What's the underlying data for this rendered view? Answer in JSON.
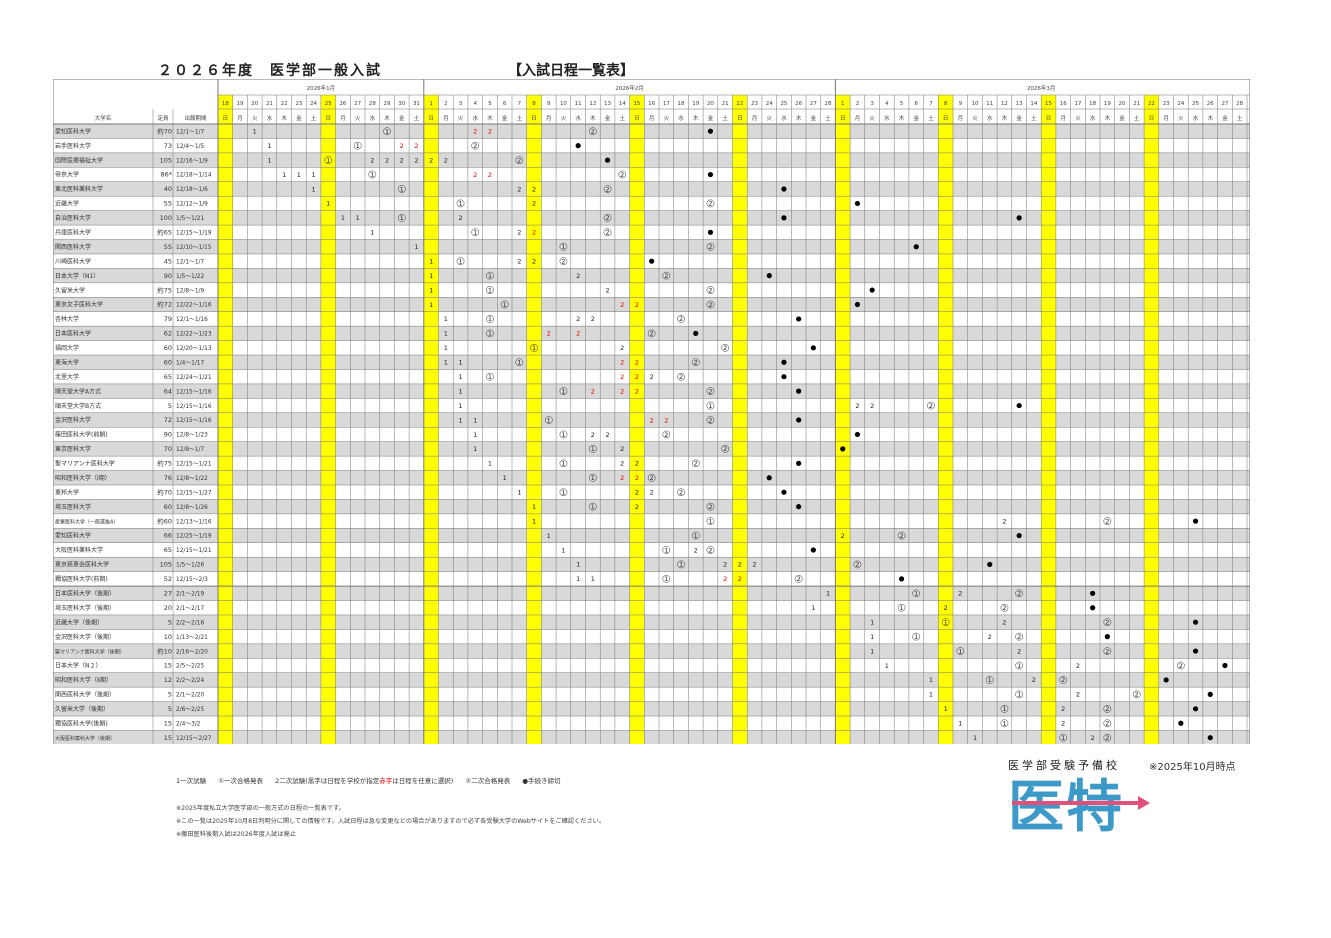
{
  "header": {
    "title": "２０２６年度　医学部一般入試",
    "subtitle": "【入試日程一覧表】"
  },
  "table": {
    "col_univ": "大学名",
    "col_quota": "定員",
    "col_period": "出願期間",
    "month_labels": [
      "2026年1月",
      "2026年2月",
      "2026年3月"
    ],
    "jan_days": [
      18,
      19,
      20,
      21,
      22,
      23,
      24,
      25,
      26,
      27,
      28,
      29,
      30,
      31
    ],
    "feb_days": [
      1,
      2,
      3,
      4,
      5,
      6,
      7,
      8,
      9,
      10,
      11,
      12,
      13,
      14,
      15,
      16,
      17,
      18,
      19,
      20,
      21,
      22,
      23,
      24,
      25,
      26,
      27,
      28
    ],
    "mar_days": [
      1,
      2,
      3,
      4,
      5,
      6,
      7,
      8,
      9,
      10,
      11,
      12,
      13,
      14,
      15,
      16,
      17,
      18,
      19,
      20,
      21,
      22,
      23,
      24,
      25,
      26,
      27,
      28
    ],
    "weekday_cycle": [
      "日",
      "月",
      "火",
      "水",
      "木",
      "金",
      "土"
    ],
    "highlight_days": [
      "1-18",
      "1-25",
      "2-1",
      "2-8",
      "2-15",
      "2-22",
      "3-1",
      "3-8",
      "3-15",
      "3-22"
    ],
    "highlight_color": "#ffff00",
    "shade_color": "#d9d9d9",
    "red_color": "#e00000",
    "universities": [
      {
        "name": "愛知医科大学",
        "quota": "約70",
        "period": "12/1～1/7",
        "marks": [
          "1-20:1",
          "1-29:c1",
          "2-4:r2",
          "2-5:r2",
          "2-12:c2",
          "2-20:dot"
        ]
      },
      {
        "name": "岩手医科大学",
        "quota": "73",
        "period": "12/4～1/5",
        "marks": [
          "1-21:1",
          "1-27:c1",
          "1-30:r2",
          "1-31:r2",
          "2-4:c2",
          "2-11:dot"
        ]
      },
      {
        "name": "国際医療福祉大学",
        "quota": "105",
        "period": "12/16～1/9",
        "marks": [
          "1-21:1",
          "1-25:c1",
          "1-28:2",
          "1-29:2",
          "1-30:2",
          "1-31:2",
          "2-1:2",
          "2-2:2",
          "2-7:c2",
          "2-13:dot"
        ]
      },
      {
        "name": "帝京大学",
        "quota": "86*",
        "period": "12/18～1/14",
        "marks": [
          "1-22:1",
          "1-23:1",
          "1-24:1",
          "1-28:c1",
          "2-4:r2",
          "2-5:r2",
          "2-14:c2",
          "2-20:dot"
        ]
      },
      {
        "name": "東北医科薬科大学",
        "quota": "40",
        "period": "12/18～1/6",
        "marks": [
          "1-24:1",
          "1-30:c1",
          "2-7:2",
          "2-8:2",
          "2-13:c2",
          "2-25:dot"
        ]
      },
      {
        "name": "近畿大学",
        "quota": "55",
        "period": "12/12～1/9",
        "marks": [
          "1-25:1",
          "2-3:c1",
          "2-8:2",
          "2-20:c2",
          "3-2:dot"
        ]
      },
      {
        "name": "自治医科大学",
        "quota": "100",
        "period": "1/5～1/21",
        "marks": [
          "1-26:1",
          "1-27:1",
          "1-30:c1",
          "2-3:2",
          "2-13:c2",
          "2-25:dot",
          "3-13:dot"
        ]
      },
      {
        "name": "兵庫医科大学",
        "quota": "約65",
        "period": "12/15～1/19",
        "marks": [
          "1-28:1",
          "2-4:c1",
          "2-7:2",
          "2-8:r2",
          "2-13:c2",
          "2-20:dot"
        ]
      },
      {
        "name": "関西医科大学",
        "quota": "55",
        "period": "12/10～1/15",
        "marks": [
          "1-31:1",
          "2-10:c1",
          "2-20:c2",
          "3-6:dot"
        ]
      },
      {
        "name": "川崎医科大学",
        "quota": "45",
        "period": "12/1～1/7",
        "marks": [
          "2-1:1",
          "2-3:c1",
          "2-7:2",
          "2-8:2",
          "2-10:c2",
          "2-16:dot"
        ]
      },
      {
        "name": "日本大学（N1）",
        "quota": "90",
        "period": "1/5～1/22",
        "marks": [
          "2-1:1",
          "2-5:c1",
          "2-11:2",
          "2-17:c2",
          "2-24:dot"
        ]
      },
      {
        "name": "久留米大学",
        "quota": "約75",
        "period": "12/8～1/9",
        "marks": [
          "2-1:1",
          "2-5:c1",
          "2-13:2",
          "2-20:c2",
          "3-3:dot"
        ]
      },
      {
        "name": "東京女子医科大学",
        "quota": "約72",
        "period": "12/22～1/16",
        "marks": [
          "2-1:1",
          "2-6:c1",
          "2-14:r2",
          "2-15:r2",
          "2-20:c2",
          "3-2:dot"
        ]
      },
      {
        "name": "杏林大学",
        "quota": "79",
        "period": "12/1～1/16",
        "marks": [
          "2-2:1",
          "2-5:c1",
          "2-11:2",
          "2-12:2",
          "2-18:c2",
          "2-26:dot"
        ]
      },
      {
        "name": "日本医科大学",
        "quota": "62",
        "period": "12/22～1/23",
        "marks": [
          "2-2:1",
          "2-5:c1",
          "2-9:r2",
          "2-11:r2",
          "2-16:c2",
          "2-19:dot"
        ]
      },
      {
        "name": "福岡大学",
        "quota": "60",
        "period": "12/20～1/13",
        "marks": [
          "2-2:1",
          "2-8:c1",
          "2-14:2",
          "2-21:c2",
          "2-27:dot"
        ]
      },
      {
        "name": "東海大学",
        "quota": "60",
        "period": "1/4～1/17",
        "marks": [
          "2-2:1",
          "2-3:1",
          "2-7:c1",
          "2-14:r2",
          "2-15:r2",
          "2-19:c2",
          "2-25:dot"
        ]
      },
      {
        "name": "北里大学",
        "quota": "65",
        "period": "12/24～1/21",
        "marks": [
          "2-3:1",
          "2-5:c1",
          "2-14:r2",
          "2-15:r2",
          "2-16:2",
          "2-18:c2",
          "2-25:dot"
        ]
      },
      {
        "name": "順天堂大学A方式",
        "quota": "64",
        "period": "12/15～1/16",
        "marks": [
          "2-3:1",
          "2-10:c1",
          "2-12:r2",
          "2-14:r2",
          "2-15:r2",
          "2-20:c2",
          "2-26:dot"
        ]
      },
      {
        "name": "順天堂大学B方式",
        "quota": "5",
        "period": "12/15～1/16",
        "marks": [
          "2-3:1",
          "2-20:c1",
          "3-2:2",
          "3-3:2",
          "3-7:c2",
          "3-13:dot"
        ]
      },
      {
        "name": "金沢医科大学",
        "quota": "72",
        "period": "12/15～1/16",
        "marks": [
          "2-3:1",
          "2-4:1",
          "2-9:c1",
          "2-16:r2",
          "2-17:r2",
          "2-20:c2",
          "2-26:dot"
        ]
      },
      {
        "name": "藤田医科大学(前期)",
        "quota": "90",
        "period": "12/8～1/23",
        "marks": [
          "2-4:1",
          "2-10:c1",
          "2-12:2",
          "2-13:2",
          "2-17:c2",
          "3-2:dot"
        ]
      },
      {
        "name": "東京医科大学",
        "quota": "70",
        "period": "12/8～1/7",
        "marks": [
          "2-4:1",
          "2-12:c1",
          "2-14:2",
          "2-21:c2",
          "3-1:dot"
        ]
      },
      {
        "name": "聖マリアンナ医科大学",
        "quota": "約75",
        "period": "12/15～1/21",
        "marks": [
          "2-5:1",
          "2-10:c1",
          "2-14:2",
          "2-15:2",
          "2-19:c2",
          "2-26:dot"
        ]
      },
      {
        "name": "昭和医科大学（Ⅰ期）",
        "quota": "76",
        "period": "12/8～1/22",
        "marks": [
          "2-6:1",
          "2-12:c1",
          "2-14:r2",
          "2-15:r2",
          "2-16:c2",
          "2-24:dot"
        ]
      },
      {
        "name": "東邦大学",
        "quota": "約70",
        "period": "12/15～1/27",
        "marks": [
          "2-7:1",
          "2-10:c1",
          "2-15:2",
          "2-16:2",
          "2-18:c2",
          "2-25:dot"
        ]
      },
      {
        "name": "埼玉医科大学",
        "quota": "60",
        "period": "12/8～1/26",
        "marks": [
          "2-8:1",
          "2-12:c1",
          "2-15:2",
          "2-20:c2",
          "2-26:dot"
        ]
      },
      {
        "name": "産業医科大学（一般選抜A）",
        "quota": "約60",
        "period": "12/13～1/16",
        "marks": [
          "2-8:1",
          "2-20:c1",
          "3-12:2",
          "3-19:c2",
          "3-25:dot"
        ]
      },
      {
        "name": "愛知医科大学",
        "quota": "66",
        "period": "12/25～1/19",
        "marks": [
          "2-9:1",
          "2-19:c1",
          "3-1:2",
          "3-5:c2",
          "3-13:dot"
        ]
      },
      {
        "name": "大阪医科薬科大学",
        "quota": "65",
        "period": "12/15～1/21",
        "marks": [
          "2-10:1",
          "2-17:c1",
          "2-19:2",
          "2-20:c2",
          "2-27:dot"
        ]
      },
      {
        "name": "東京慈恵会医科大学",
        "quota": "105",
        "period": "1/5～1/26",
        "marks": [
          "2-11:1",
          "2-18:c1",
          "2-21:2",
          "2-22:2",
          "2-23:2",
          "3-2:c2",
          "3-11:dot"
        ]
      },
      {
        "name": "獨協医科大学(前期)",
        "quota": "52",
        "period": "12/15～2/3",
        "marks": [
          "2-11:1",
          "2-12:1",
          "2-17:c1",
          "2-21:r2",
          "2-22:r2",
          "2-26:c2",
          "3-5:dot"
        ]
      },
      {
        "name": "日本医科大学（後期）",
        "quota": "27",
        "period": "2/1～2/19",
        "marks": [
          "2-28:1",
          "3-6:c1",
          "3-9:2",
          "3-13:c2",
          "3-18:dot"
        ]
      },
      {
        "name": "埼玉医科大学（後期）",
        "quota": "20",
        "period": "2/1～2/17",
        "marks": [
          "2-27:1",
          "3-5:c1",
          "3-8:2",
          "3-12:c2",
          "3-18:dot"
        ]
      },
      {
        "name": "近畿大学（後期）",
        "quota": "5",
        "period": "2/2～2/16",
        "marks": [
          "3-3:1",
          "3-8:c1",
          "3-12:2",
          "3-19:c2",
          "3-25:dot"
        ]
      },
      {
        "name": "金沢医科大学（後期）",
        "quota": "10",
        "period": "1/13～2/21",
        "marks": [
          "3-3:1",
          "3-6:c1",
          "3-11:2",
          "3-13:c2",
          "3-19:dot"
        ]
      },
      {
        "name": "聖マリアンナ医科大学（後期）",
        "quota": "約10",
        "period": "2/16～2/20",
        "marks": [
          "3-3:1",
          "3-9:c1",
          "3-13:2",
          "3-19:c2",
          "3-25:dot"
        ]
      },
      {
        "name": "日本大学（N２）",
        "quota": "15",
        "period": "2/5～2/25",
        "marks": [
          "3-4:1",
          "3-13:c1",
          "3-17:2",
          "3-24:c2",
          "3-27:dot"
        ]
      },
      {
        "name": "昭和医科大学（Ⅱ期）",
        "quota": "12",
        "period": "2/2～2/24",
        "marks": [
          "3-7:1",
          "3-11:c1",
          "3-14:2",
          "3-16:c2",
          "3-23:dot"
        ]
      },
      {
        "name": "関西医科大学（後期）",
        "quota": "5",
        "period": "2/1～2/20",
        "marks": [
          "3-7:1",
          "3-13:c1",
          "3-17:2",
          "3-21:c2",
          "3-26:dot"
        ]
      },
      {
        "name": "久留米大学（後期）",
        "quota": "5",
        "period": "2/6～2/25",
        "marks": [
          "3-8:1",
          "3-12:c1",
          "3-16:2",
          "3-19:c2",
          "3-25:dot"
        ]
      },
      {
        "name": "獨協医科大学(後期)",
        "quota": "15",
        "period": "2/4～3/2",
        "marks": [
          "3-9:1",
          "3-12:c1",
          "3-16:2",
          "3-19:c2",
          "3-24:dot"
        ]
      },
      {
        "name": "大阪医科薬科大学（後期）",
        "quota": "15",
        "period": "12/15～2/27",
        "marks": [
          "3-10:1",
          "3-16:c1",
          "3-18:2",
          "3-19:c2",
          "3-26:dot"
        ]
      }
    ]
  },
  "legend": {
    "l1": "1一次試験",
    "l2": "①一次合格発表",
    "l3a": "2二次試験(黒字は日程を学校が指定",
    "l3b": "赤字",
    "l3c": "は日程を任意に選択)",
    "l4": "②二次合格発表",
    "l5": "●手続き締切"
  },
  "notes": {
    "n1": "※2025年度私立大学医学部の一般方式の日程の一覧表です。",
    "n2": "※この一覧は2025年10月8日判明分に関しての情報です。入試日程は急な変更などの場合がありますので必ず各受験大学のWebサイトをご確認ください。",
    "n3": "※藤田医科後期入試は2026年度入試は廃止"
  },
  "brand": {
    "tagline": "医学部受験予備校",
    "as_of": "※2025年10月時点",
    "logo_text": "医特",
    "logo_color": "#3d9ac8",
    "arrow_color": "#e0507a"
  }
}
